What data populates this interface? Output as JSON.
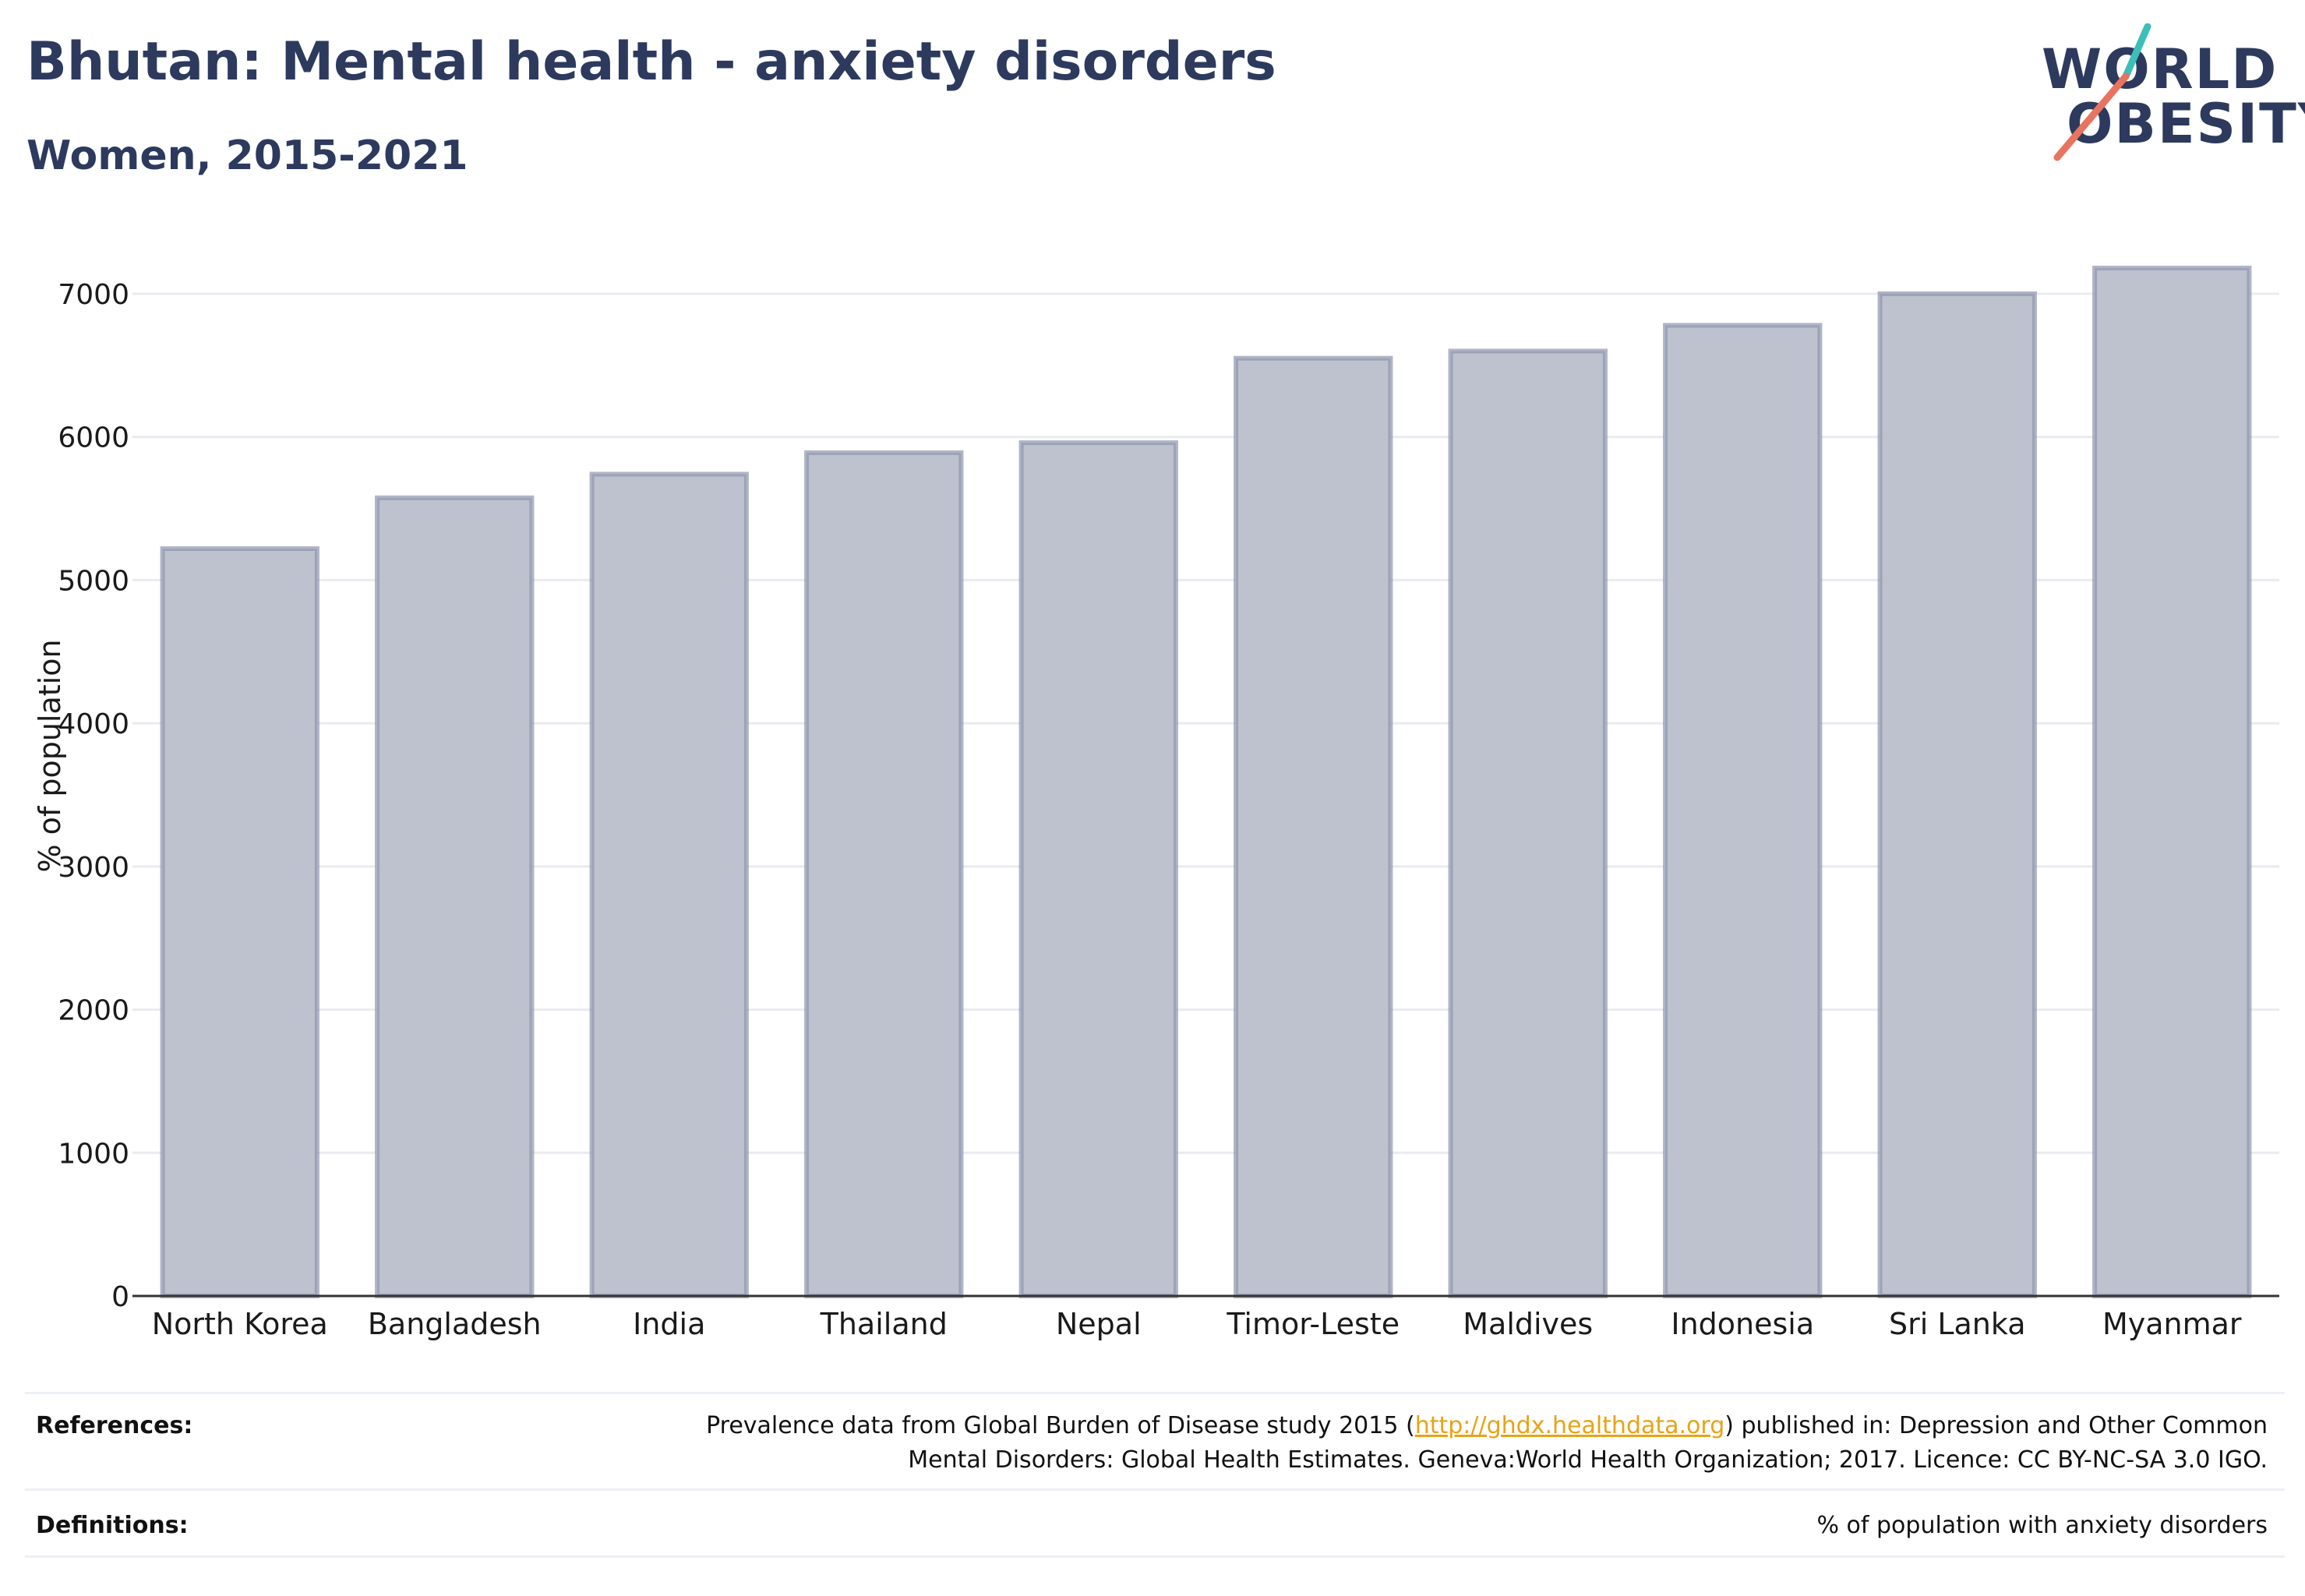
{
  "header": {
    "title": "Bhutan: Mental health - anxiety disorders",
    "subtitle": "Women, 2015-2021"
  },
  "logo": {
    "line1": "WORLD",
    "line2": "OBESITY",
    "colors": {
      "text": "#2d3a5e",
      "slash_top": "#3bbfb8",
      "slash_bottom": "#e8735f"
    }
  },
  "chart_data": {
    "type": "bar",
    "categories": [
      "North Korea",
      "Bangladesh",
      "India",
      "Thailand",
      "Nepal",
      "Timor-Leste",
      "Maldives",
      "Indonesia",
      "Sri Lanka",
      "Myanmar"
    ],
    "values": [
      5220,
      5575,
      5740,
      5890,
      5960,
      6550,
      6600,
      6780,
      7000,
      7180
    ],
    "ylabel": "% of population",
    "xlabel": "",
    "ylim": [
      0,
      7350
    ],
    "yticks": [
      0,
      1000,
      2000,
      3000,
      4000,
      5000,
      6000,
      7000
    ],
    "grid": true,
    "colors": {
      "bar_fill": "#bec1ce",
      "bar_stroke": "#8f95ae",
      "grid": "#e9ebf0",
      "axis": "#333333"
    }
  },
  "footer": {
    "references_label": "References:",
    "references_text_line1_before": "Prevalence data from Global Burden of Disease study 2015 (",
    "references_link": "http://ghdx.healthdata.org",
    "references_text_line1_after": ") published in: Depression and Other Common",
    "references_text_line2": "Mental Disorders: Global Health Estimates. Geneva:World Health Organization; 2017. Licence: CC BY-NC-SA 3.0 IGO.",
    "definitions_label": "Definitions:",
    "definitions_text": "% of population with anxiety disorders"
  }
}
